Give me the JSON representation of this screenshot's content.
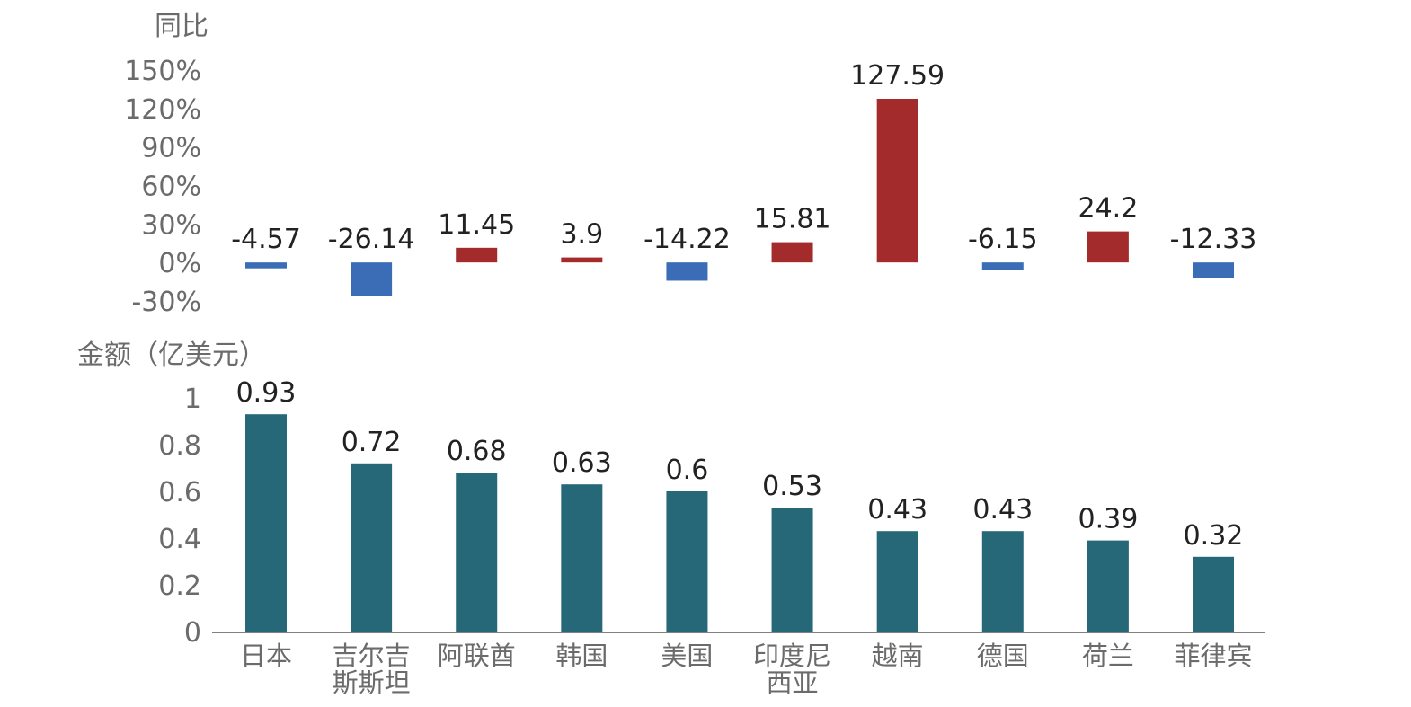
{
  "chart_data": [
    {
      "type": "bar",
      "ylabel": "同比",
      "categories": [
        "日本",
        "吉尔吉斯斯坦",
        "阿联酋",
        "韩国",
        "美国",
        "印度尼西亚",
        "越南",
        "德国",
        "荷兰",
        "菲律宾"
      ],
      "values": [
        -4.57,
        -26.14,
        11.45,
        3.9,
        -14.22,
        15.81,
        127.59,
        -6.15,
        24.2,
        -12.33
      ],
      "value_labels": [
        "-4.57",
        "-26.14",
        "11.45",
        "3.9",
        "-14.22",
        "15.81",
        "127.59",
        "-6.15",
        "24.2",
        "-12.33"
      ],
      "ylim": [
        -30,
        150
      ],
      "yticks": [
        150,
        120,
        90,
        60,
        30,
        0,
        -30
      ],
      "ytick_labels": [
        "150%",
        "120%",
        "90%",
        "60%",
        "30%",
        "0%",
        "-30%"
      ],
      "colors": {
        "positive": "#a32b2b",
        "negative": "#3a6db5"
      },
      "grid": false,
      "legend": "none"
    },
    {
      "type": "bar",
      "ylabel": "金额（亿美元）",
      "categories": [
        "日本",
        "吉尔吉斯斯坦",
        "阿联酋",
        "韩国",
        "美国",
        "印度尼西亚",
        "越南",
        "德国",
        "荷兰",
        "菲律宾"
      ],
      "category_labels": [
        [
          "日本"
        ],
        [
          "吉尔吉",
          "斯斯坦"
        ],
        [
          "阿联酋"
        ],
        [
          "韩国"
        ],
        [
          "美国"
        ],
        [
          "印度尼",
          "西亚"
        ],
        [
          "越南"
        ],
        [
          "德国"
        ],
        [
          "荷兰"
        ],
        [
          "菲律宾"
        ]
      ],
      "values": [
        0.93,
        0.72,
        0.68,
        0.63,
        0.6,
        0.53,
        0.43,
        0.43,
        0.39,
        0.32
      ],
      "value_labels": [
        "0.93",
        "0.72",
        "0.68",
        "0.63",
        "0.6",
        "0.53",
        "0.43",
        "0.43",
        "0.39",
        "0.32"
      ],
      "ylim": [
        0,
        1
      ],
      "yticks": [
        1,
        0.8,
        0.6,
        0.4,
        0.2,
        0
      ],
      "ytick_labels": [
        "1",
        "0.8",
        "0.6",
        "0.4",
        "0.2",
        "0"
      ],
      "color": "#266878",
      "grid": false,
      "legend": "none"
    }
  ]
}
